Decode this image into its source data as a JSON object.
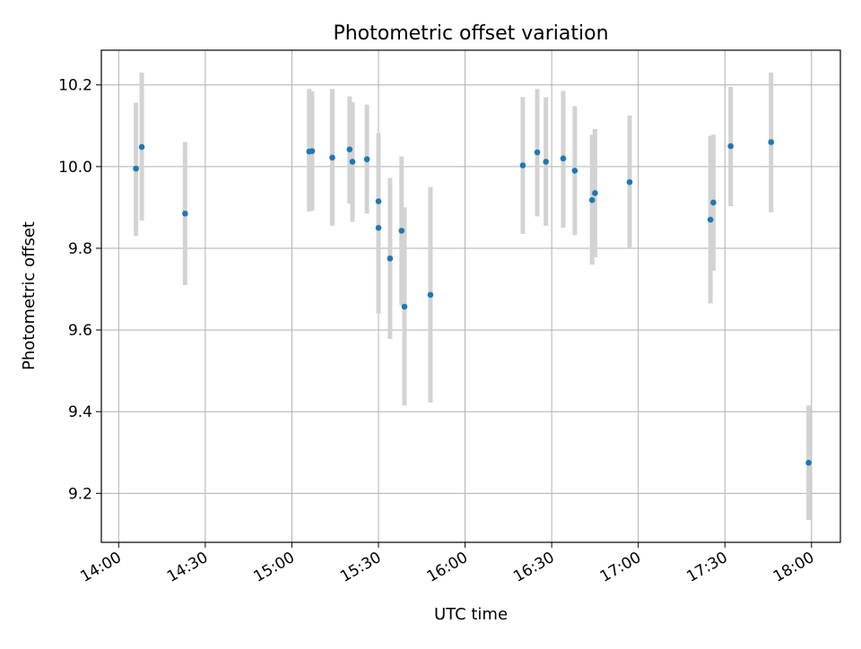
{
  "chart_data": {
    "type": "scatter",
    "title": "Photometric offset variation",
    "xlabel": "UTC time",
    "ylabel": "Photometric offset",
    "x_unit": "HH:MM UTC",
    "xlim": [
      "13:54",
      "18:10"
    ],
    "ylim": [
      9.08,
      10.285
    ],
    "grid": true,
    "x_ticks": [
      "14:00",
      "14:30",
      "15:00",
      "15:30",
      "16:00",
      "16:30",
      "17:00",
      "17:30",
      "18:00"
    ],
    "y_ticks": [
      9.2,
      9.4,
      9.6,
      9.8,
      10.0,
      10.2
    ],
    "colors": {
      "marker": "#1f77b4",
      "errorbar": "#d3d3d3",
      "grid": "#b0b0b0",
      "axes": "#000000"
    },
    "points": [
      {
        "time": "14:06",
        "y": 9.995,
        "lo": 9.83,
        "hi": 10.157
      },
      {
        "time": "14:08",
        "y": 10.048,
        "lo": 9.868,
        "hi": 10.23
      },
      {
        "time": "14:23",
        "y": 9.885,
        "lo": 9.71,
        "hi": 10.06
      },
      {
        "time": "15:06",
        "y": 10.037,
        "lo": 9.89,
        "hi": 10.19
      },
      {
        "time": "15:07",
        "y": 10.038,
        "lo": 9.892,
        "hi": 10.184
      },
      {
        "time": "15:14",
        "y": 10.022,
        "lo": 9.855,
        "hi": 10.19
      },
      {
        "time": "15:20",
        "y": 10.042,
        "lo": 9.91,
        "hi": 10.172
      },
      {
        "time": "15:21",
        "y": 10.012,
        "lo": 9.865,
        "hi": 10.158
      },
      {
        "time": "15:26",
        "y": 10.018,
        "lo": 9.885,
        "hi": 10.152
      },
      {
        "time": "15:30",
        "y": 9.915,
        "lo": 9.75,
        "hi": 10.082
      },
      {
        "time": "15:30",
        "y": 9.85,
        "lo": 9.64,
        "hi": 10.062
      },
      {
        "time": "15:34",
        "y": 9.775,
        "lo": 9.578,
        "hi": 9.972
      },
      {
        "time": "15:38",
        "y": 9.843,
        "lo": 9.66,
        "hi": 10.025
      },
      {
        "time": "15:39",
        "y": 9.657,
        "lo": 9.415,
        "hi": 9.9
      },
      {
        "time": "15:48",
        "y": 9.686,
        "lo": 9.422,
        "hi": 9.95
      },
      {
        "time": "16:20",
        "y": 10.003,
        "lo": 9.835,
        "hi": 10.17
      },
      {
        "time": "16:25",
        "y": 10.035,
        "lo": 9.878,
        "hi": 10.19
      },
      {
        "time": "16:28",
        "y": 10.012,
        "lo": 9.855,
        "hi": 10.17
      },
      {
        "time": "16:34",
        "y": 10.02,
        "lo": 9.85,
        "hi": 10.185
      },
      {
        "time": "16:38",
        "y": 9.99,
        "lo": 9.832,
        "hi": 10.148
      },
      {
        "time": "16:44",
        "y": 9.918,
        "lo": 9.76,
        "hi": 10.078
      },
      {
        "time": "16:45",
        "y": 9.935,
        "lo": 9.778,
        "hi": 10.092
      },
      {
        "time": "16:57",
        "y": 9.962,
        "lo": 9.8,
        "hi": 10.125
      },
      {
        "time": "17:25",
        "y": 9.87,
        "lo": 9.665,
        "hi": 10.075
      },
      {
        "time": "17:26",
        "y": 9.912,
        "lo": 9.745,
        "hi": 10.078
      },
      {
        "time": "17:32",
        "y": 10.05,
        "lo": 9.903,
        "hi": 10.195
      },
      {
        "time": "17:46",
        "y": 10.06,
        "lo": 9.888,
        "hi": 10.23
      },
      {
        "time": "17:59",
        "y": 9.275,
        "lo": 9.135,
        "hi": 9.415
      }
    ]
  }
}
